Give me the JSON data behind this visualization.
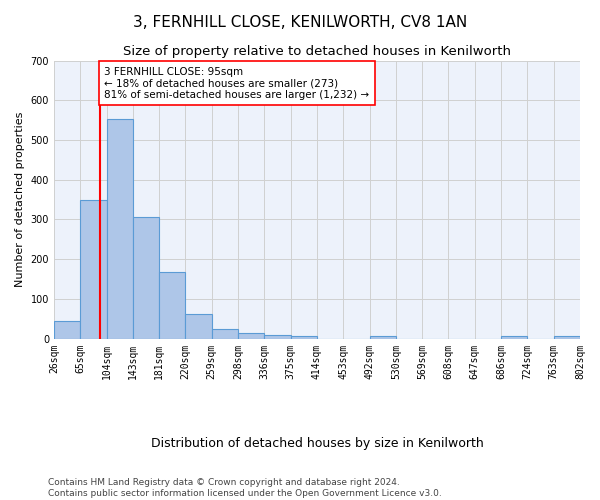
{
  "title": "3, FERNHILL CLOSE, KENILWORTH, CV8 1AN",
  "subtitle": "Size of property relative to detached houses in Kenilworth",
  "xlabel": "Distribution of detached houses by size in Kenilworth",
  "ylabel": "Number of detached properties",
  "bar_values": [
    43,
    350,
    553,
    305,
    168,
    62,
    23,
    13,
    9,
    7,
    0,
    0,
    7,
    0,
    0,
    0,
    0,
    7,
    0,
    7
  ],
  "bar_labels": [
    "26sqm",
    "65sqm",
    "104sqm",
    "143sqm",
    "181sqm",
    "220sqm",
    "259sqm",
    "298sqm",
    "336sqm",
    "375sqm",
    "414sqm",
    "453sqm",
    "492sqm",
    "530sqm",
    "569sqm",
    "608sqm",
    "647sqm",
    "686sqm",
    "724sqm",
    "763sqm",
    "802sqm"
  ],
  "bar_color": "#aec6e8",
  "bar_edge_color": "#5b9bd5",
  "bar_edge_width": 0.8,
  "vline_color": "red",
  "vline_linewidth": 1.5,
  "annotation_text": "3 FERNHILL CLOSE: 95sqm\n← 18% of detached houses are smaller (273)\n81% of semi-detached houses are larger (1,232) →",
  "annotation_box_color": "white",
  "annotation_box_edge_color": "red",
  "ylim": [
    0,
    700
  ],
  "yticks": [
    0,
    100,
    200,
    300,
    400,
    500,
    600,
    700
  ],
  "grid_color": "#d0d0d0",
  "bg_color": "#edf2fb",
  "footer_line1": "Contains HM Land Registry data © Crown copyright and database right 2024.",
  "footer_line2": "Contains public sector information licensed under the Open Government Licence v3.0.",
  "title_fontsize": 11,
  "subtitle_fontsize": 9.5,
  "xlabel_fontsize": 9,
  "ylabel_fontsize": 8,
  "annotation_fontsize": 7.5,
  "footer_fontsize": 6.5,
  "tick_fontsize": 7
}
